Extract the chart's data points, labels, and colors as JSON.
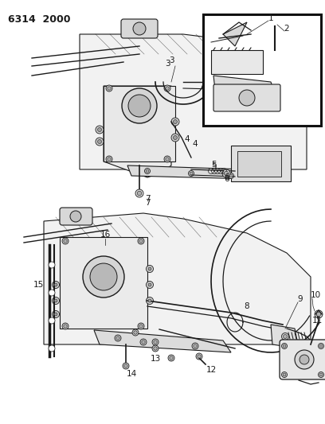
{
  "title": "6314  2000",
  "bg": "#ffffff",
  "lc": "#1a1a1a",
  "gray1": "#e8e8e8",
  "gray2": "#d0d0d0",
  "gray3": "#b0b0b0",
  "figsize": [
    4.08,
    5.33
  ],
  "dpi": 100
}
